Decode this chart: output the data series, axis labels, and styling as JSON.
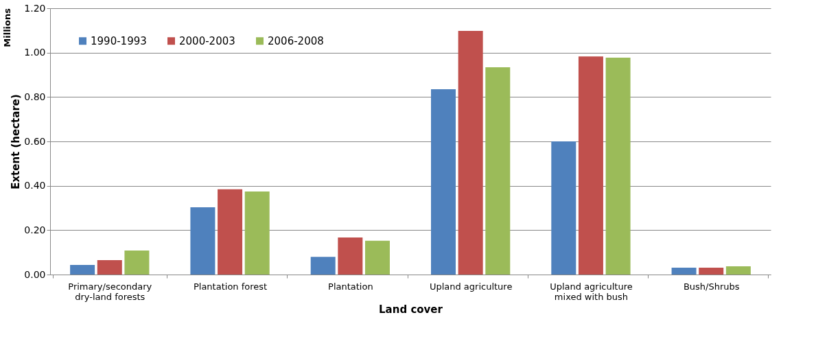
{
  "chart_data": {
    "type": "bar",
    "xlabel": "Land cover",
    "ylabel": "Extent (hectare)",
    "annotations": [
      "Millions"
    ],
    "categories": [
      "Primary/secondary dry-land forests",
      "Plantation forest",
      "Plantation",
      "Upland agriculture",
      "Upland agriculture mixed with bush",
      "Bush/Shrubs"
    ],
    "series": [
      {
        "name": "1990-1993",
        "color": "#4f81bd",
        "values": [
          0.043,
          0.303,
          0.08,
          0.835,
          0.6,
          0.031
        ]
      },
      {
        "name": "2000-2003",
        "color": "#c0504d",
        "values": [
          0.065,
          0.384,
          0.167,
          1.098,
          0.983,
          0.031
        ]
      },
      {
        "name": "2006-2008",
        "color": "#9bbb59",
        "values": [
          0.108,
          0.374,
          0.152,
          0.934,
          0.977,
          0.037
        ]
      }
    ],
    "ylim": [
      0,
      1.2
    ],
    "yticks": [
      {
        "value": 0,
        "label": "0.00"
      },
      {
        "value": 0.2,
        "label": "0.20"
      },
      {
        "value": 0.4,
        "label": "0.40"
      },
      {
        "value": 0.6,
        "label": "0.60"
      },
      {
        "value": 0.8,
        "label": "0.80"
      },
      {
        "value": 1.0,
        "label": "1.00"
      },
      {
        "value": 1.2,
        "label": "1.20"
      }
    ],
    "grid": "y",
    "legend": "top left"
  }
}
